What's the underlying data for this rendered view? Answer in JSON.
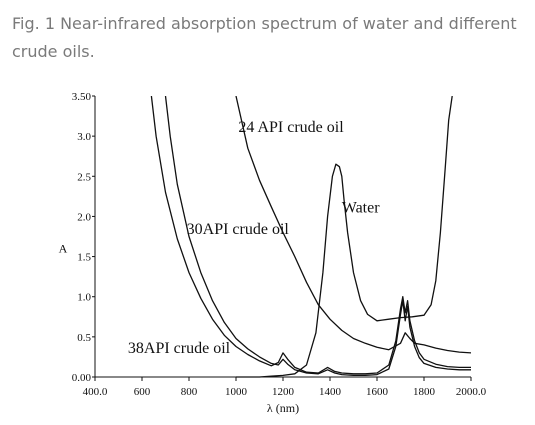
{
  "caption": "Fig. 1 Near-infrared absorption spectrum of water and different crude oils.",
  "chart_data": {
    "type": "line",
    "xlabel": "λ (nm)",
    "ylabel": "A",
    "xlim": [
      400,
      2000
    ],
    "ylim": [
      0,
      3.5
    ],
    "x_ticks": [
      400,
      600,
      800,
      1000,
      1200,
      1400,
      1600,
      1800,
      2000
    ],
    "x_tick_labels": [
      "400.0",
      "600",
      "800",
      "1000",
      "1200",
      "1400",
      "1600",
      "1800",
      "2000.0"
    ],
    "y_ticks": [
      0,
      0.5,
      1.0,
      1.5,
      2.0,
      2.5,
      3.0,
      3.5
    ],
    "y_tick_labels": [
      "0.00",
      "0.5",
      "1.0",
      "1.5",
      "2.0",
      "2.5",
      "3.0",
      "3.50"
    ],
    "grid": false,
    "legend": "none",
    "series": [
      {
        "name": "24 API crude oil",
        "x": [
          1000,
          1050,
          1100,
          1150,
          1200,
          1250,
          1300,
          1350,
          1400,
          1450,
          1500,
          1550,
          1600,
          1650,
          1700,
          1720,
          1740,
          1760,
          1800,
          1850,
          1900,
          1950,
          2000
        ],
        "y": [
          3.5,
          2.85,
          2.45,
          2.12,
          1.8,
          1.5,
          1.18,
          0.9,
          0.72,
          0.58,
          0.48,
          0.42,
          0.37,
          0.34,
          0.42,
          0.55,
          0.48,
          0.42,
          0.4,
          0.36,
          0.33,
          0.31,
          0.3
        ]
      },
      {
        "name": "30API crude oil",
        "x": [
          640,
          660,
          700,
          750,
          800,
          850,
          900,
          950,
          1000,
          1050,
          1100,
          1150,
          1180,
          1200,
          1220,
          1250,
          1300,
          1350,
          1390,
          1420,
          1450,
          1500,
          1550,
          1600,
          1650,
          1680,
          1700,
          1710,
          1720,
          1730,
          1740,
          1760,
          1780,
          1800,
          1850,
          1900,
          1950,
          2000
        ],
        "y": [
          3.5,
          3.0,
          2.3,
          1.72,
          1.3,
          0.98,
          0.72,
          0.52,
          0.38,
          0.28,
          0.2,
          0.14,
          0.18,
          0.3,
          0.22,
          0.12,
          0.06,
          0.05,
          0.12,
          0.07,
          0.05,
          0.04,
          0.04,
          0.05,
          0.15,
          0.45,
          0.85,
          1.0,
          0.8,
          0.95,
          0.7,
          0.45,
          0.3,
          0.22,
          0.16,
          0.13,
          0.12,
          0.12
        ]
      },
      {
        "name": "38API crude oil",
        "x": [
          700,
          720,
          750,
          800,
          850,
          900,
          950,
          1000,
          1050,
          1100,
          1150,
          1180,
          1200,
          1220,
          1250,
          1300,
          1350,
          1390,
          1420,
          1450,
          1500,
          1550,
          1600,
          1650,
          1680,
          1700,
          1710,
          1720,
          1730,
          1740,
          1760,
          1780,
          1800,
          1850,
          1900,
          1950,
          2000
        ],
        "y": [
          3.5,
          3.0,
          2.4,
          1.75,
          1.3,
          0.95,
          0.68,
          0.48,
          0.35,
          0.25,
          0.17,
          0.15,
          0.22,
          0.16,
          0.09,
          0.05,
          0.04,
          0.09,
          0.05,
          0.03,
          0.02,
          0.02,
          0.03,
          0.1,
          0.38,
          0.78,
          0.95,
          0.7,
          0.88,
          0.62,
          0.38,
          0.24,
          0.17,
          0.12,
          0.1,
          0.09,
          0.09
        ]
      },
      {
        "name": "Water",
        "x": [
          1000,
          1100,
          1150,
          1200,
          1250,
          1300,
          1340,
          1370,
          1390,
          1410,
          1425,
          1440,
          1450,
          1460,
          1475,
          1500,
          1530,
          1560,
          1600,
          1650,
          1700,
          1750,
          1800,
          1830,
          1850,
          1870,
          1890,
          1905,
          1920
        ],
        "y": [
          0.0,
          0.0,
          0.01,
          0.02,
          0.04,
          0.15,
          0.55,
          1.3,
          2.0,
          2.5,
          2.65,
          2.62,
          2.5,
          2.2,
          1.8,
          1.3,
          0.95,
          0.78,
          0.7,
          0.72,
          0.74,
          0.75,
          0.77,
          0.9,
          1.2,
          1.8,
          2.6,
          3.2,
          3.5
        ]
      }
    ],
    "annotations": [
      {
        "text": "24 API crude oil",
        "x": 1010,
        "y": 3.05
      },
      {
        "text": "30API crude oil",
        "x": 790,
        "y": 1.78
      },
      {
        "text": "38API crude oil",
        "x": 540,
        "y": 0.3
      },
      {
        "text": "Water",
        "x": 1450,
        "y": 2.05
      }
    ]
  }
}
